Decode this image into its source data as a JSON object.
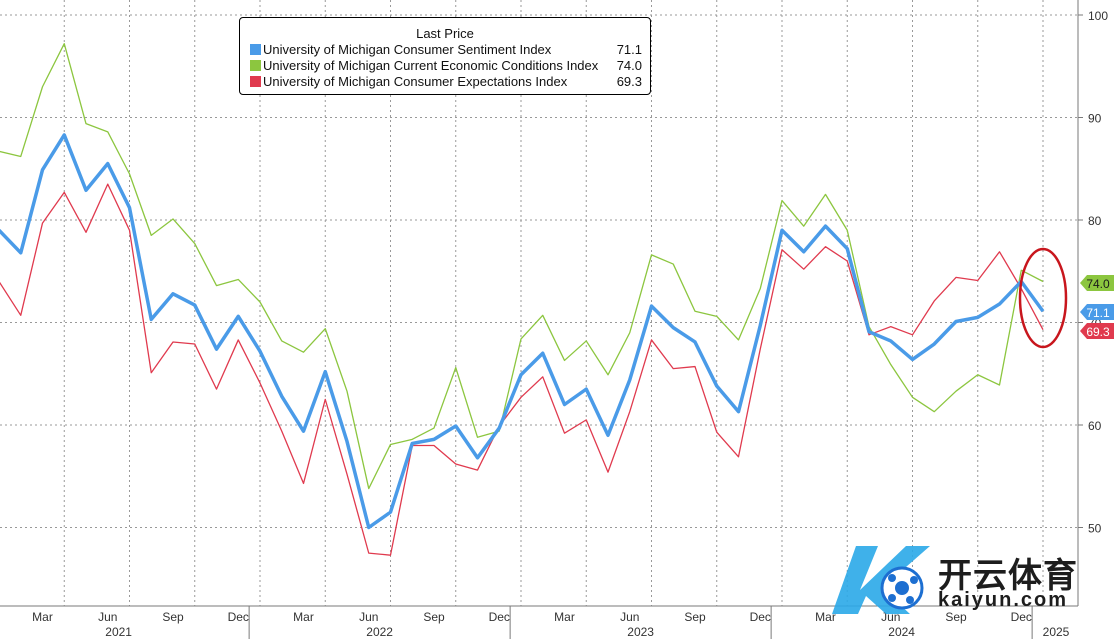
{
  "chart_data": {
    "type": "line",
    "title": "",
    "legend_title": "Last Price",
    "legend_position": "top-left",
    "grid": true,
    "ylim": [
      45,
      102
    ],
    "y_ticks": [
      50,
      60,
      70,
      80,
      90,
      100
    ],
    "y_tick_labels": [
      "50",
      "60",
      "70",
      "80",
      "90",
      "100"
    ],
    "x_start": "2021-01",
    "month_labels": [
      "Mar",
      "Jun",
      "Sep",
      "Dec",
      "Mar",
      "Jun",
      "Sep",
      "Dec",
      "Mar",
      "Jun",
      "Sep",
      "Dec",
      "Mar",
      "Jun",
      "Sep",
      "Dec"
    ],
    "month_label_positions": [
      "2021-03",
      "2021-06",
      "2021-09",
      "2021-12",
      "2022-03",
      "2022-06",
      "2022-09",
      "2022-12",
      "2023-03",
      "2023-06",
      "2023-09",
      "2023-12",
      "2024-03",
      "2024-06",
      "2024-09",
      "2024-12"
    ],
    "year_labels": [
      "2021",
      "2022",
      "2023",
      "2024",
      "2025"
    ],
    "x": [
      "2021-01",
      "2021-02",
      "2021-03",
      "2021-04",
      "2021-05",
      "2021-06",
      "2021-07",
      "2021-08",
      "2021-09",
      "2021-10",
      "2021-11",
      "2021-12",
      "2022-01",
      "2022-02",
      "2022-03",
      "2022-04",
      "2022-05",
      "2022-06",
      "2022-07",
      "2022-08",
      "2022-09",
      "2022-10",
      "2022-11",
      "2022-12",
      "2023-01",
      "2023-02",
      "2023-03",
      "2023-04",
      "2023-05",
      "2023-06",
      "2023-07",
      "2023-08",
      "2023-09",
      "2023-10",
      "2023-11",
      "2023-12",
      "2024-01",
      "2024-02",
      "2024-03",
      "2024-04",
      "2024-05",
      "2024-06",
      "2024-07",
      "2024-08",
      "2024-09",
      "2024-10",
      "2024-11",
      "2024-12",
      "2025-01"
    ],
    "series": [
      {
        "name": "University of Michigan Consumer Sentiment Index",
        "color": "#4a9be8",
        "last": "71.1",
        "values": [
          79.0,
          76.8,
          84.9,
          88.3,
          82.9,
          85.5,
          81.2,
          70.3,
          72.8,
          71.7,
          67.4,
          70.6,
          67.2,
          62.8,
          59.4,
          65.2,
          58.4,
          50.0,
          51.5,
          58.2,
          58.6,
          59.9,
          56.8,
          59.7,
          64.9,
          67.0,
          62.0,
          63.5,
          59.0,
          64.4,
          71.6,
          69.5,
          68.1,
          63.8,
          61.3,
          69.7,
          79.0,
          76.9,
          79.4,
          77.2,
          69.1,
          68.2,
          66.4,
          67.9,
          70.1,
          70.5,
          71.8,
          74.0,
          71.1
        ]
      },
      {
        "name": "University of Michigan Current Economic Conditions Index",
        "color": "#8cc63f",
        "last": "74.0",
        "values": [
          86.7,
          86.2,
          93.0,
          97.2,
          89.4,
          88.6,
          84.5,
          78.5,
          80.1,
          77.7,
          73.6,
          74.2,
          72.0,
          68.2,
          67.1,
          69.4,
          63.3,
          53.8,
          58.1,
          58.6,
          59.7,
          65.6,
          58.8,
          59.4,
          68.4,
          70.7,
          66.3,
          68.2,
          64.9,
          69.0,
          76.6,
          75.7,
          71.1,
          70.6,
          68.3,
          73.3,
          81.9,
          79.4,
          82.5,
          79.0,
          69.6,
          65.9,
          62.7,
          61.3,
          63.3,
          64.9,
          63.9,
          75.1,
          74.0
        ]
      },
      {
        "name": "University of Michigan Consumer Expectations Index",
        "color": "#e03a4e",
        "last": "69.3",
        "values": [
          74.0,
          70.7,
          79.7,
          82.7,
          78.8,
          83.5,
          79.0,
          65.1,
          68.1,
          67.9,
          63.5,
          68.3,
          64.1,
          59.4,
          54.3,
          62.5,
          55.2,
          47.5,
          47.3,
          58.0,
          58.0,
          56.2,
          55.6,
          59.9,
          62.7,
          64.7,
          59.2,
          60.5,
          55.4,
          61.3,
          68.3,
          65.5,
          65.7,
          59.3,
          56.9,
          67.4,
          77.1,
          75.2,
          77.4,
          76.0,
          68.8,
          69.6,
          68.8,
          72.1,
          74.4,
          74.1,
          76.9,
          73.3,
          69.3
        ]
      }
    ]
  },
  "watermark": {
    "brand": "开云体育",
    "url": "kaiyun.com"
  }
}
